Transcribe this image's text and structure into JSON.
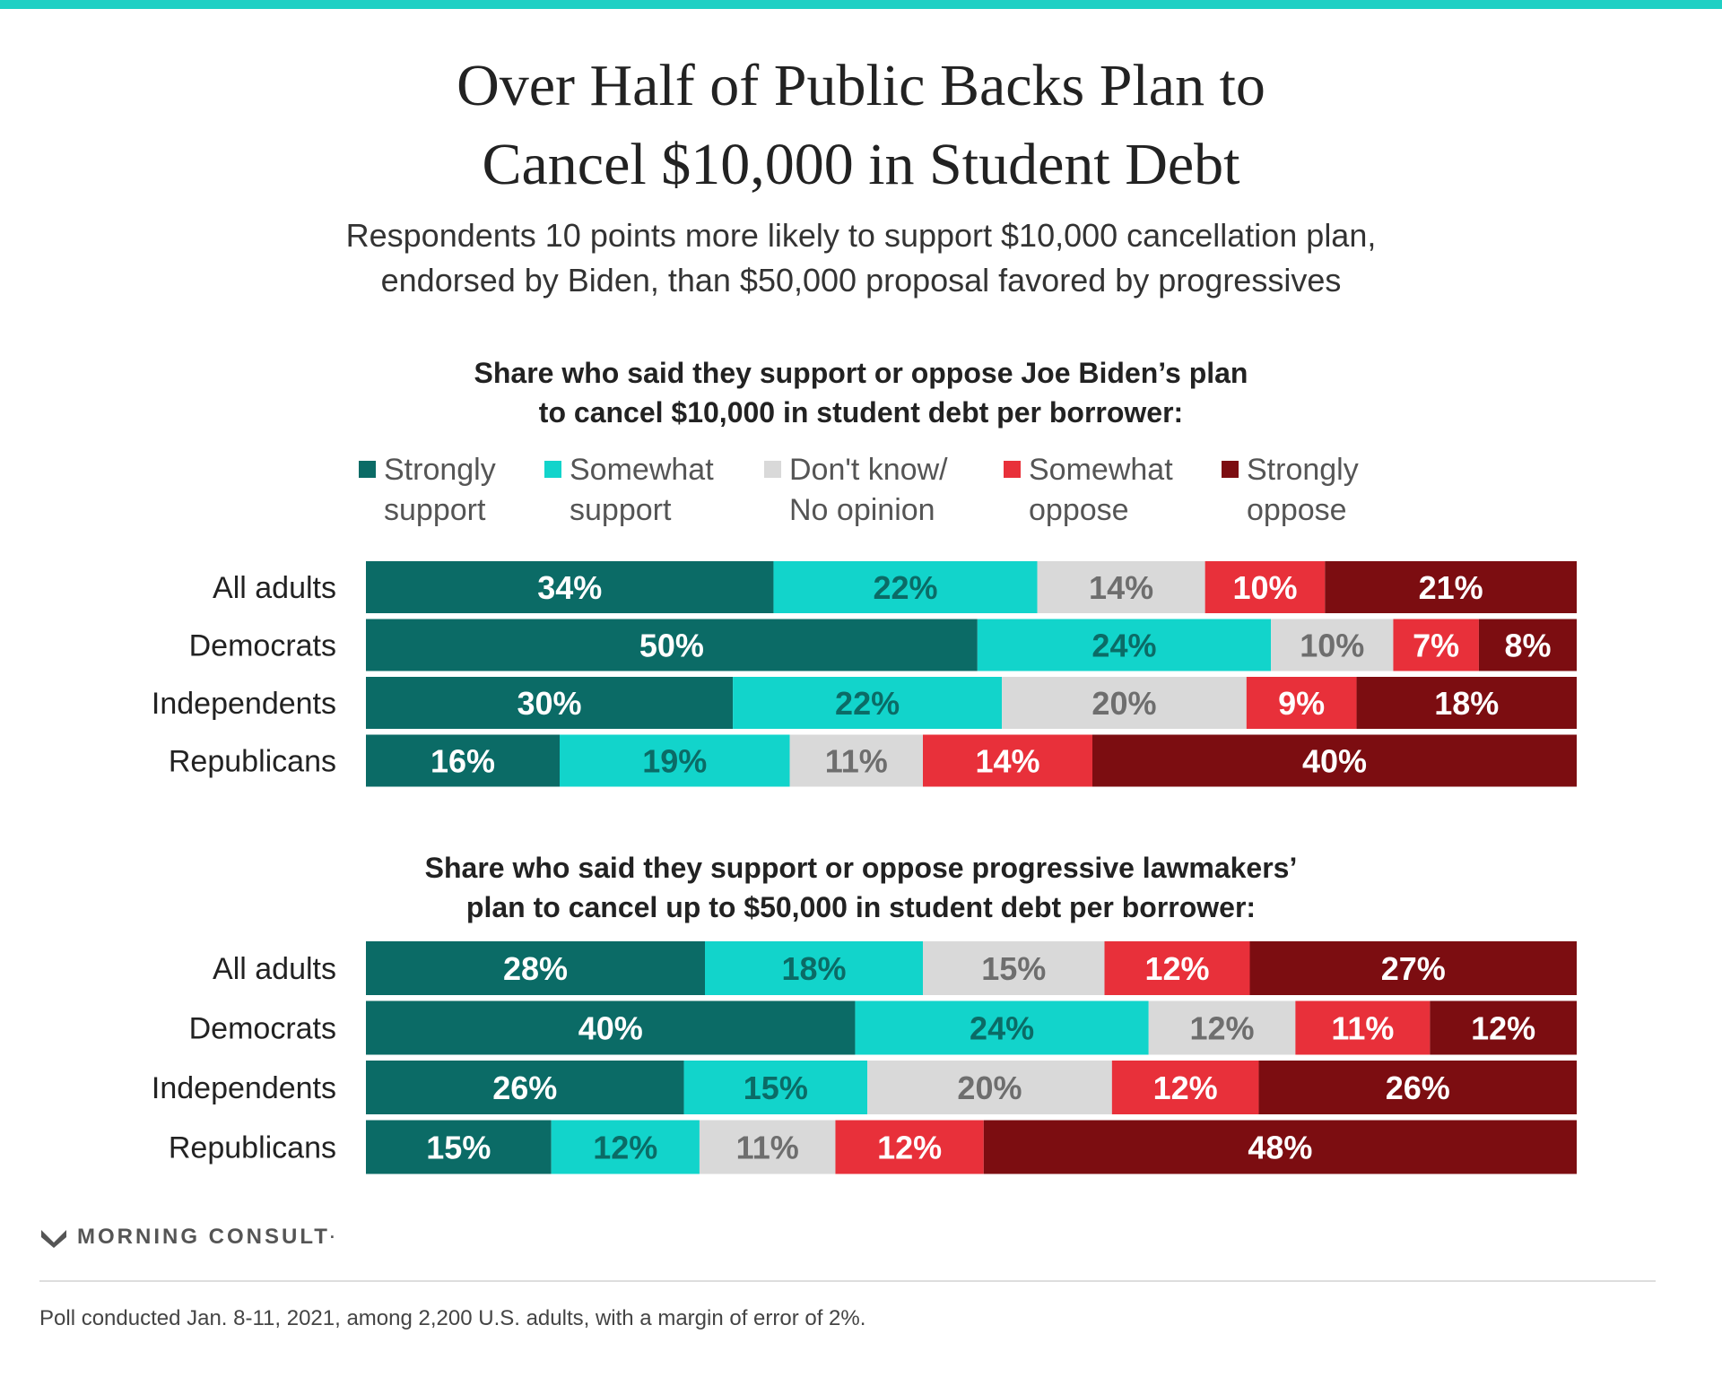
{
  "header": {
    "title_line1": "Over Half of Public Backs Plan to",
    "title_line2": "Cancel $10,000 in Student Debt",
    "subtitle_line1": "Respondents 10 points more likely to support $10,000 cancellation plan,",
    "subtitle_line2": "endorsed by Biden, than $50,000 proposal favored by progressives"
  },
  "legend": [
    {
      "line1": "Strongly",
      "line2": "support",
      "color": "#0b6b66"
    },
    {
      "line1": "Somewhat",
      "line2": "support",
      "color": "#12d4cb"
    },
    {
      "line1": "Don't know/",
      "line2": "No opinion",
      "color": "#d9d9d9"
    },
    {
      "line1": "Somewhat",
      "line2": "oppose",
      "color": "#e8303a"
    },
    {
      "line1": "Strongly",
      "line2": "oppose",
      "color": "#7c0d11"
    }
  ],
  "chart_data": [
    {
      "type": "bar",
      "orientation": "horizontal",
      "stacked": true,
      "title_line1": "Share who said they support or oppose Joe Biden’s plan",
      "title_line2": "to cancel $10,000 in student debt per borrower:",
      "categories": [
        "All adults",
        "Democrats",
        "Independents",
        "Republicans"
      ],
      "series": [
        {
          "name": "Strongly support",
          "values": [
            34,
            50,
            30,
            16
          ]
        },
        {
          "name": "Somewhat support",
          "values": [
            22,
            24,
            22,
            19
          ]
        },
        {
          "name": "Don't know/No opinion",
          "values": [
            14,
            10,
            20,
            11
          ]
        },
        {
          "name": "Somewhat oppose",
          "values": [
            10,
            7,
            9,
            14
          ]
        },
        {
          "name": "Strongly oppose",
          "values": [
            21,
            8,
            18,
            40
          ]
        }
      ],
      "value_suffix": "%"
    },
    {
      "type": "bar",
      "orientation": "horizontal",
      "stacked": true,
      "title_line1": "Share who said they support or oppose progressive lawmakers’",
      "title_line2": "plan to cancel up to $50,000 in student debt per borrower:",
      "categories": [
        "All adults",
        "Democrats",
        "Independents",
        "Republicans"
      ],
      "series": [
        {
          "name": "Strongly support",
          "values": [
            28,
            40,
            26,
            15
          ]
        },
        {
          "name": "Somewhat support",
          "values": [
            18,
            24,
            15,
            12
          ]
        },
        {
          "name": "Don't know/No opinion",
          "values": [
            15,
            12,
            20,
            11
          ]
        },
        {
          "name": "Somewhat oppose",
          "values": [
            12,
            11,
            12,
            12
          ]
        },
        {
          "name": "Strongly oppose",
          "values": [
            27,
            12,
            26,
            48
          ]
        }
      ],
      "value_suffix": "%"
    }
  ],
  "brand": {
    "name": "MORNING CONSULT",
    "mark": "·"
  },
  "footnote": "Poll conducted Jan. 8-11, 2021, among 2,200 U.S. adults, with a margin of error of 2%."
}
